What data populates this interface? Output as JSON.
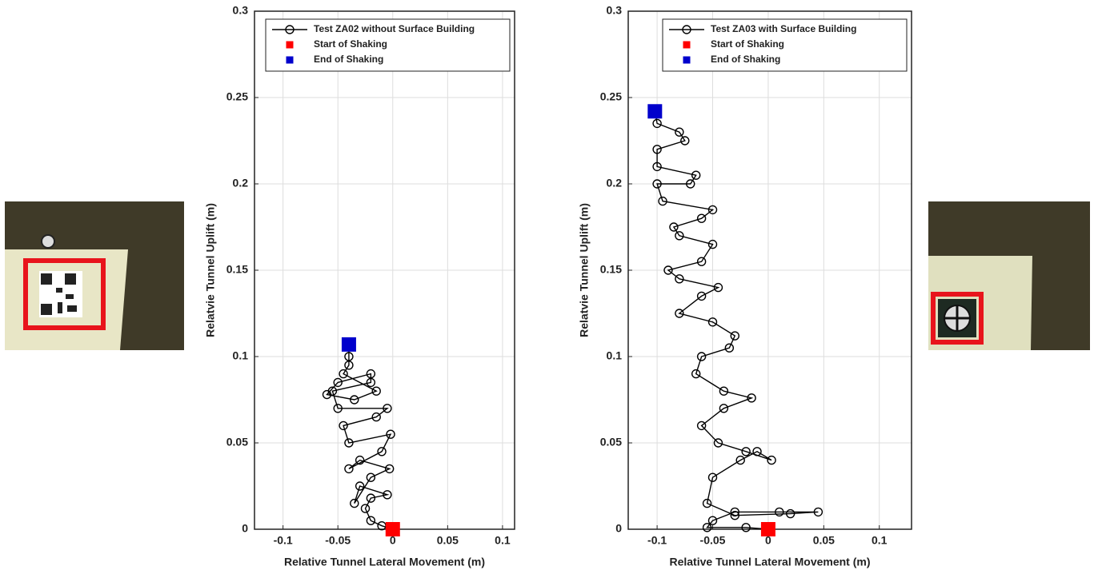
{
  "chart_data": [
    {
      "type": "scatter",
      "x_label": "Relative Tunnel Lateral Movement (m)",
      "y_label": "Relatvie Tunnel Uplift (m)",
      "xlim": [
        -0.126,
        0.111
      ],
      "ylim": [
        0,
        0.3
      ],
      "xticks": [
        -0.1,
        -0.05,
        0,
        0.05,
        0.1
      ],
      "yticks": [
        0,
        0.05,
        0.1,
        0.15,
        0.2,
        0.25,
        0.3
      ],
      "grid": true,
      "legend": "upper right",
      "series": [
        {
          "name": "Test ZA02 without Surface Building",
          "color": "#000000",
          "marker": "circle-line",
          "x": [
            0,
            -0.01,
            -0.02,
            -0.025,
            -0.02,
            -0.005,
            -0.03,
            -0.035,
            -0.02,
            -0.003,
            -0.03,
            -0.04,
            -0.01,
            -0.002,
            -0.04,
            -0.045,
            -0.015,
            -0.005,
            -0.05,
            -0.055,
            -0.02,
            -0.02,
            -0.05,
            -0.06,
            -0.035,
            -0.015,
            -0.045,
            -0.04,
            -0.04,
            -0.04
          ],
          "values": [
            0,
            0.002,
            0.005,
            0.012,
            0.018,
            0.02,
            0.025,
            0.015,
            0.03,
            0.035,
            0.04,
            0.035,
            0.045,
            0.055,
            0.05,
            0.06,
            0.065,
            0.07,
            0.07,
            0.08,
            0.085,
            0.09,
            0.085,
            0.078,
            0.075,
            0.08,
            0.09,
            0.095,
            0.1,
            0.107
          ]
        },
        {
          "name": "Start of Shaking",
          "color": "#ff0000",
          "marker": "square",
          "x": [
            0
          ],
          "values": [
            0
          ]
        },
        {
          "name": "End of Shaking",
          "color": "#0000cc",
          "marker": "square",
          "x": [
            -0.04
          ],
          "values": [
            0.107
          ]
        }
      ]
    },
    {
      "type": "scatter",
      "x_label": "Relative Tunnel Lateral Movement (m)",
      "y_label": "Relatvie Tunnel Uplift (m)",
      "xlim": [
        -0.126,
        0.129
      ],
      "ylim": [
        0,
        0.3
      ],
      "xticks": [
        -0.1,
        -0.05,
        0,
        0.05,
        0.1
      ],
      "yticks": [
        0,
        0.05,
        0.1,
        0.15,
        0.2,
        0.25,
        0.3
      ],
      "grid": true,
      "legend": "upper right",
      "series": [
        {
          "name": "Test ZA03 with Surface Building",
          "color": "#000000",
          "marker": "circle-line",
          "x": [
            0,
            -0.02,
            -0.055,
            -0.05,
            -0.03,
            0.01,
            0.045,
            0.02,
            -0.03,
            -0.055,
            -0.05,
            -0.025,
            -0.01,
            0.003,
            -0.02,
            -0.045,
            -0.06,
            -0.04,
            -0.015,
            -0.04,
            -0.065,
            -0.06,
            -0.035,
            -0.03,
            -0.05,
            -0.08,
            -0.06,
            -0.045,
            -0.08,
            -0.09,
            -0.06,
            -0.05,
            -0.08,
            -0.085,
            -0.06,
            -0.05,
            -0.095,
            -0.1,
            -0.07,
            -0.065,
            -0.1,
            -0.1,
            -0.075,
            -0.08,
            -0.1,
            -0.102
          ],
          "values": [
            0,
            0.001,
            0.001,
            0.005,
            0.01,
            0.01,
            0.01,
            0.009,
            0.008,
            0.015,
            0.03,
            0.04,
            0.045,
            0.04,
            0.045,
            0.05,
            0.06,
            0.07,
            0.076,
            0.08,
            0.09,
            0.1,
            0.105,
            0.112,
            0.12,
            0.125,
            0.135,
            0.14,
            0.145,
            0.15,
            0.155,
            0.165,
            0.17,
            0.175,
            0.18,
            0.185,
            0.19,
            0.2,
            0.2,
            0.205,
            0.21,
            0.22,
            0.225,
            0.23,
            0.235,
            0.242
          ]
        },
        {
          "name": "Start of Shaking",
          "color": "#ff0000",
          "marker": "square",
          "x": [
            0
          ],
          "values": [
            0
          ]
        },
        {
          "name": "End of Shaking",
          "color": "#0000cc",
          "marker": "square",
          "x": [
            -0.102
          ],
          "values": [
            0.242
          ]
        }
      ]
    }
  ]
}
